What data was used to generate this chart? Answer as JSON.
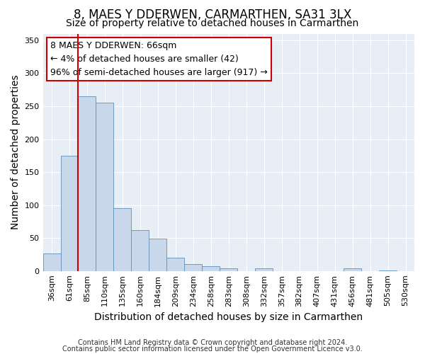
{
  "title": "8, MAES Y DDERWEN, CARMARTHEN, SA31 3LX",
  "subtitle": "Size of property relative to detached houses in Carmarthen",
  "xlabel": "Distribution of detached houses by size in Carmarthen",
  "ylabel": "Number of detached properties",
  "footnote1": "Contains HM Land Registry data © Crown copyright and database right 2024.",
  "footnote2": "Contains public sector information licensed under the Open Government Licence v3.0.",
  "bin_labels": [
    "36sqm",
    "61sqm",
    "85sqm",
    "110sqm",
    "135sqm",
    "160sqm",
    "184sqm",
    "209sqm",
    "234sqm",
    "258sqm",
    "283sqm",
    "308sqm",
    "332sqm",
    "357sqm",
    "382sqm",
    "407sqm",
    "431sqm",
    "456sqm",
    "481sqm",
    "505sqm",
    "530sqm"
  ],
  "bar_values": [
    27,
    175,
    265,
    255,
    95,
    62,
    49,
    20,
    11,
    7,
    4,
    0,
    4,
    0,
    0,
    0,
    0,
    4,
    0,
    1,
    0
  ],
  "bar_color": "#c8d8ea",
  "bar_edge_color": "#6090b8",
  "red_line_bin_index": 2,
  "red_line_color": "#cc0000",
  "ylim": [
    0,
    360
  ],
  "yticks": [
    0,
    50,
    100,
    150,
    200,
    250,
    300,
    350
  ],
  "annotation_title": "8 MAES Y DDERWEN: 66sqm",
  "annotation_line1": "← 4% of detached houses are smaller (42)",
  "annotation_line2": "96% of semi-detached houses are larger (917) →",
  "annotation_box_color": "#ffffff",
  "annotation_box_edge": "#cc0000",
  "plot_bg_color": "#e8eef6",
  "fig_bg_color": "#ffffff",
  "grid_color": "#ffffff",
  "title_fontsize": 12,
  "subtitle_fontsize": 10,
  "axis_label_fontsize": 10,
  "tick_fontsize": 8,
  "annotation_fontsize": 9,
  "footnote_fontsize": 7
}
